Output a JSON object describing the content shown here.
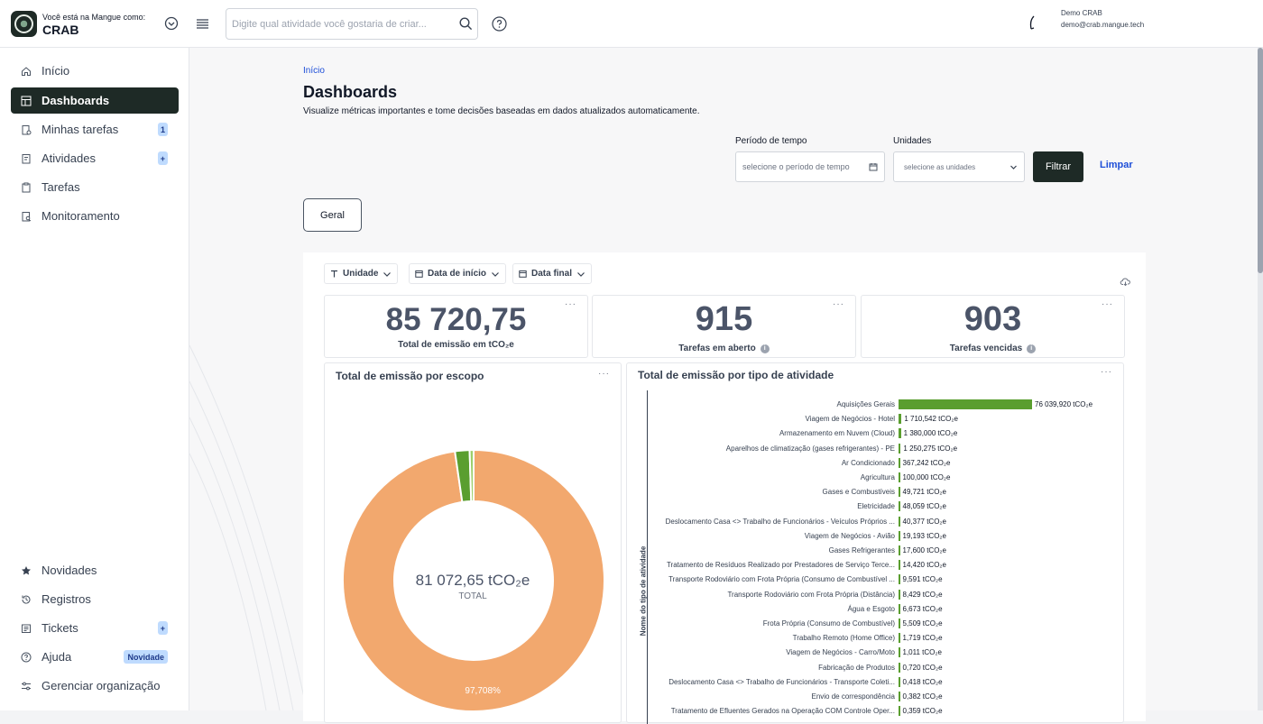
{
  "header": {
    "org_caption": "Você está na Mangue como:",
    "org_name": "CRAB",
    "search_placeholder": "Digite qual atividade você gostaria de criar...",
    "user_name": "Demo CRAB",
    "user_email": "demo@crab.mangue.tech"
  },
  "sidebar": {
    "items": [
      {
        "label": "Início",
        "icon": "home-icon"
      },
      {
        "label": "Dashboards",
        "icon": "dashboard-icon",
        "active": true
      },
      {
        "label": "Minhas tarefas",
        "icon": "tasks-icon",
        "badge": "1"
      },
      {
        "label": "Atividades",
        "icon": "activities-icon",
        "badge": "+"
      },
      {
        "label": "Tarefas",
        "icon": "clipboard-icon"
      },
      {
        "label": "Monitoramento",
        "icon": "monitor-icon"
      }
    ],
    "bottom_items": [
      {
        "label": "Novidades",
        "icon": "star-icon"
      },
      {
        "label": "Registros",
        "icon": "history-icon"
      },
      {
        "label": "Tickets",
        "icon": "ticket-icon",
        "badge": "+"
      },
      {
        "label": "Ajuda",
        "icon": "help-icon",
        "badge": "Novidade"
      },
      {
        "label": "Gerenciar organização",
        "icon": "settings-sliders-icon"
      }
    ]
  },
  "page": {
    "breadcrumb": "Início",
    "title": "Dashboards",
    "subtitle": "Visualize métricas importantes e tome decisões baseadas em dados atualizados automaticamente."
  },
  "filters": {
    "period_label": "Período de tempo",
    "period_placeholder": "selecione o período de tempo",
    "units_label": "Unidades",
    "units_placeholder": "selecione as unidades",
    "filter_button": "Filtrar",
    "clear_button": "Limpar"
  },
  "tabs": [
    "Geral"
  ],
  "dashboard": {
    "chips": [
      "Unidade",
      "Data de início",
      "Data final"
    ],
    "kpis": [
      {
        "value": "85 720,75",
        "label": "Total de emissão em tCO₂e"
      },
      {
        "value": "915",
        "label": "Tarefas em aberto"
      },
      {
        "value": "903",
        "label": "Tarefas vencidas"
      }
    ],
    "dots": "···"
  },
  "chart_data": [
    {
      "type": "pie",
      "title": "Total de emissão por escopo",
      "center_value": "81 072,65 tCO₂e",
      "center_label": "TOTAL",
      "slices": [
        {
          "value": 97.708,
          "label": "97,708%",
          "color": "#f2a86e"
        },
        {
          "value": 1.8,
          "color": "#5a9e2f"
        },
        {
          "value": 0.49,
          "color": "#9ccf6b"
        }
      ]
    },
    {
      "type": "bar",
      "orientation": "horizontal",
      "title": "Total de emissão por tipo de atividade",
      "ylabel": "Nome do tipo de atividade",
      "bar_color": "#5a9e2f",
      "categories": [
        "Aquisições Gerais",
        "Viagem de Negócios - Hotel",
        "Armazenamento em Nuvem (Cloud)",
        "Aparelhos de climatização (gases refrigerantes) - PE",
        "Ar Condicionado",
        "Agricultura",
        "Gases e Combustíveis",
        "Eletricidade",
        "Deslocamento Casa <> Trabalho de Funcionários - Veículos Próprios ...",
        "Viagem de Negócios - Avião",
        "Gases Refrigerantes",
        "Tratamento de Resíduos Realizado por Prestadores de Serviço Terce...",
        "Transporte Rodoviário com Frota Própria (Consumo de Combustível ...",
        "Transporte Rodoviário com Frota Própria (Distância)",
        "Água e Esgoto",
        "Frota Própria (Consumo de Combustível)",
        "Trabalho Remoto (Home Office)",
        "Viagem de Negócios - Carro/Moto",
        "Fabricação de Produtos",
        "Deslocamento Casa <> Trabalho de Funcionários - Transporte Coleti...",
        "Envio de correspondência",
        "Tratamento de Efluentes Gerados na Operação COM Controle Oper..."
      ],
      "values": [
        76039.92,
        1710.542,
        1380.0,
        1250.275,
        367.242,
        100.0,
        49.721,
        48.059,
        40.377,
        19.193,
        17.6,
        14.42,
        9.591,
        8.429,
        6.673,
        5.509,
        1.719,
        1.011,
        0.72,
        0.418,
        0.382,
        0.359
      ],
      "value_labels": [
        "76 039,920 tCO₂e",
        "1 710,542 tCO₂e",
        "1 380,000 tCO₂e",
        "1 250,275 tCO₂e",
        "367,242 tCO₂e",
        "100,000 tCO₂e",
        "49,721 tCO₂e",
        "48,059 tCO₂e",
        "40,377 tCO₂e",
        "19,193 tCO₂e",
        "17,600 tCO₂e",
        "14,420 tCO₂e",
        "9,591 tCO₂e",
        "8,429 tCO₂e",
        "6,673 tCO₂e",
        "5,509 tCO₂e",
        "1,719 tCO₂e",
        "1,011 tCO₂e",
        "0,720 tCO₂e",
        "0,418 tCO₂e",
        "0,382 tCO₂e",
        "0,359 tCO₂e"
      ]
    }
  ]
}
